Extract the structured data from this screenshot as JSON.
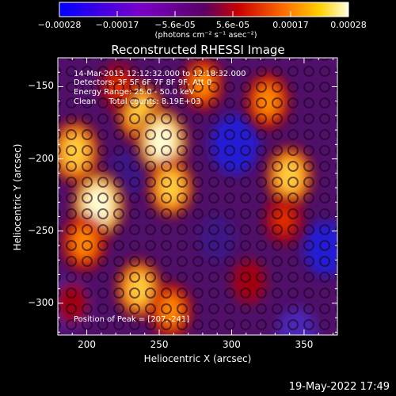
{
  "chart_data": {
    "type": "heatmap",
    "title": "Reconstructed RHESSI Image",
    "xlabel": "Heliocentric X (arcsec)",
    "ylabel": "Heliocentric Y (arcsec)",
    "xlim": [
      180,
      373
    ],
    "ylim": [
      -322,
      -130
    ],
    "xticks": [
      200,
      250,
      300,
      350
    ],
    "yticks": [
      -150,
      -200,
      -250,
      -300
    ],
    "colorbar": {
      "ticks": [
        "-0.00028",
        "-0.00017",
        "-5.6e-05",
        "5.6e-05",
        "0.00017",
        "0.00028"
      ],
      "unit_label": "(photons cm⁻² s⁻¹ asec⁻²)",
      "range": [
        -0.00028,
        0.00028
      ]
    },
    "annotations": {
      "time": "14-Mar-2015 12:12:32.000 to 12:18:32.000",
      "detectors": "Detectors: 3F 5F 6F 7F 8F 9F, Att 0",
      "energy": "Energy Range: 25.0 - 50.0 keV",
      "clean": "Clean     Total counts: 8.19E+03",
      "peak": "Position of Peak = [207,-241]"
    },
    "emission_sources": [
      {
        "x": 192,
        "y": -195,
        "level": 0.85
      },
      {
        "x": 208,
        "y": -232,
        "level": 1.0
      },
      {
        "x": 198,
        "y": -258,
        "level": 0.7
      },
      {
        "x": 237,
        "y": -168,
        "level": 0.8
      },
      {
        "x": 252,
        "y": -188,
        "level": 0.95
      },
      {
        "x": 258,
        "y": -220,
        "level": 0.75
      },
      {
        "x": 236,
        "y": -290,
        "level": 0.75
      },
      {
        "x": 258,
        "y": -305,
        "level": 0.65
      },
      {
        "x": 280,
        "y": -148,
        "level": 0.6
      },
      {
        "x": 325,
        "y": -160,
        "level": 0.7
      },
      {
        "x": 340,
        "y": -212,
        "level": 0.8
      },
      {
        "x": 336,
        "y": -242,
        "level": 0.5
      },
      {
        "x": 222,
        "y": -150,
        "level": 0.45
      },
      {
        "x": 312,
        "y": -285,
        "level": 0.35
      },
      {
        "x": 190,
        "y": -300,
        "level": 0.3
      }
    ],
    "negative_regions": [
      {
        "x": 302,
        "y": -190,
        "level": 0.8
      },
      {
        "x": 365,
        "y": -262,
        "level": 0.65
      },
      {
        "x": 188,
        "y": -300,
        "level": 0.55
      },
      {
        "x": 345,
        "y": -320,
        "level": 0.5
      },
      {
        "x": 228,
        "y": -210,
        "level": 0.45
      },
      {
        "x": 290,
        "y": -255,
        "level": 0.4
      }
    ]
  },
  "footer": {
    "date": "19-May-2022 17:49"
  }
}
